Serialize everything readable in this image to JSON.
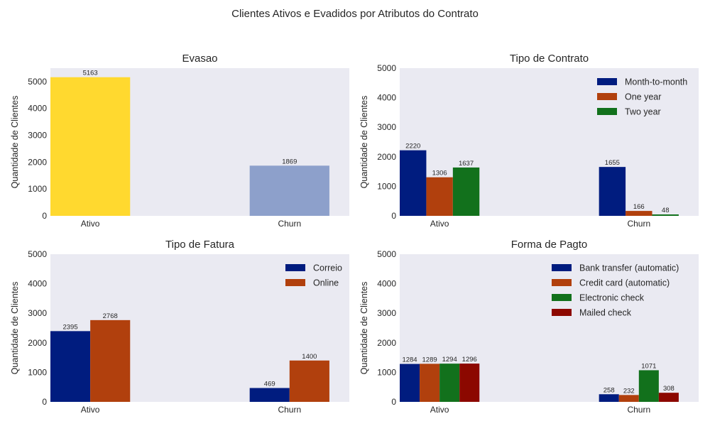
{
  "title": "Clientes Ativos e Evadidos por Atributos do Contrato",
  "chart_data": [
    {
      "type": "bar",
      "title": "Evasao",
      "xlabel": "",
      "ylabel": "Quantidade de Clientes",
      "categories": [
        "Ativo",
        "Churn"
      ],
      "ylim": [
        0,
        5500
      ],
      "yticks": [
        0,
        1000,
        2000,
        3000,
        4000,
        5000
      ],
      "grid": false,
      "legend": null,
      "series": [
        {
          "values": [
            5163,
            1869
          ],
          "colors": [
            "#FFD92F",
            "#8DA0CB"
          ]
        }
      ]
    },
    {
      "type": "bar",
      "title": "Tipo de Contrato",
      "xlabel": "",
      "ylabel": "Quantidade de Clientes",
      "categories": [
        "Ativo",
        "Churn"
      ],
      "ylim": [
        0,
        5000
      ],
      "yticks": [
        0,
        1000,
        2000,
        3000,
        4000,
        5000
      ],
      "grid": false,
      "legend": "top-right",
      "series": [
        {
          "name": "Month-to-month",
          "values": [
            2220,
            1655
          ],
          "color": "#001C7F"
        },
        {
          "name": "One year",
          "values": [
            1306,
            166
          ],
          "color": "#B1400D"
        },
        {
          "name": "Two year",
          "values": [
            1637,
            48
          ],
          "color": "#12711C"
        }
      ]
    },
    {
      "type": "bar",
      "title": "Tipo de Fatura",
      "xlabel": "",
      "ylabel": "Quantidade de Clientes",
      "categories": [
        "Ativo",
        "Churn"
      ],
      "ylim": [
        0,
        5000
      ],
      "yticks": [
        0,
        1000,
        2000,
        3000,
        4000,
        5000
      ],
      "grid": false,
      "legend": "top-right",
      "series": [
        {
          "name": "Correio",
          "values": [
            2395,
            469
          ],
          "color": "#001C7F"
        },
        {
          "name": "Online",
          "values": [
            2768,
            1400
          ],
          "color": "#B1400D"
        }
      ]
    },
    {
      "type": "bar",
      "title": "Forma de Pagto",
      "xlabel": "",
      "ylabel": "Quantidade de Clientes",
      "categories": [
        "Ativo",
        "Churn"
      ],
      "ylim": [
        0,
        5000
      ],
      "yticks": [
        0,
        1000,
        2000,
        3000,
        4000,
        5000
      ],
      "grid": false,
      "legend": "top-right",
      "series": [
        {
          "name": "Bank transfer (automatic)",
          "values": [
            1284,
            258
          ],
          "color": "#001C7F"
        },
        {
          "name": "Credit card (automatic)",
          "values": [
            1289,
            232
          ],
          "color": "#B1400D"
        },
        {
          "name": "Electronic check",
          "values": [
            1294,
            1071
          ],
          "color": "#12711C"
        },
        {
          "name": "Mailed check",
          "values": [
            1296,
            308
          ],
          "color": "#8C0800"
        }
      ]
    }
  ]
}
